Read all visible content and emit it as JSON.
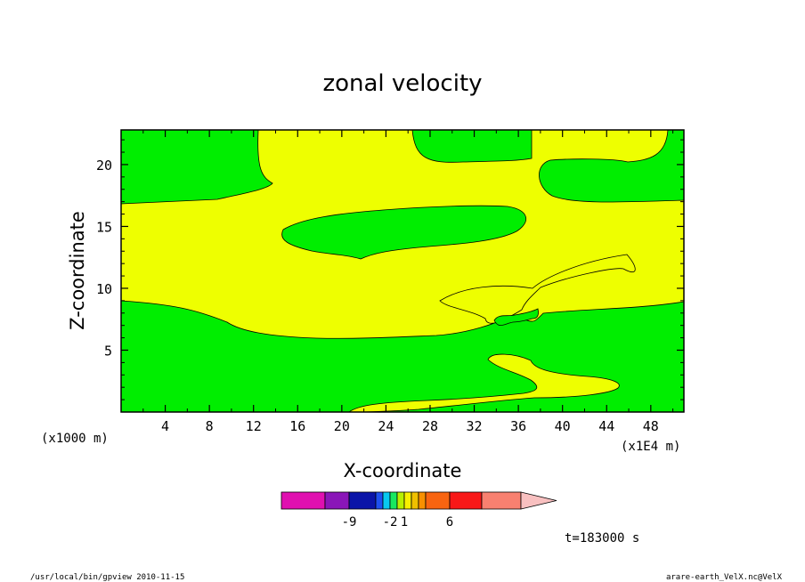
{
  "chart_data": {
    "type": "heatmap",
    "title": "zonal velocity",
    "xlabel": "X-coordinate",
    "ylabel": "Z-coordinate",
    "x_unit_note": "(x1E4 m)",
    "z_unit_note": "(x1000 m)",
    "xlim": [
      0,
      51
    ],
    "ylim": [
      0,
      22.8
    ],
    "x_ticks": [
      "4",
      "8",
      "12",
      "16",
      "20",
      "24",
      "28",
      "32",
      "36",
      "40",
      "44",
      "48"
    ],
    "y_ticks": [
      "5",
      "10",
      "15",
      "20"
    ],
    "x_tick_values": [
      4,
      8,
      12,
      16,
      20,
      24,
      28,
      32,
      36,
      40,
      44,
      48
    ],
    "y_tick_values": [
      5,
      10,
      15,
      20
    ],
    "fill_colors": {
      "green": "#00ee00",
      "yellow": "#eeff00"
    },
    "colorbar": {
      "colors": [
        "#e010b0",
        "#8a16b8",
        "#0a14a8",
        "#1e50f0",
        "#08c8f0",
        "#18e860",
        "#b8f000",
        "#f8f000",
        "#f0c000",
        "#f89000",
        "#f86410",
        "#f81818",
        "#f88070",
        "#f8c0c0"
      ],
      "labels": [
        "-9",
        "-2",
        "1",
        "6"
      ]
    },
    "time_label": "t=183000 s"
  },
  "footer": {
    "left": "/usr/local/bin/gpview  2010-11-15",
    "right": "arare-earth_VelX.nc@VelX"
  }
}
